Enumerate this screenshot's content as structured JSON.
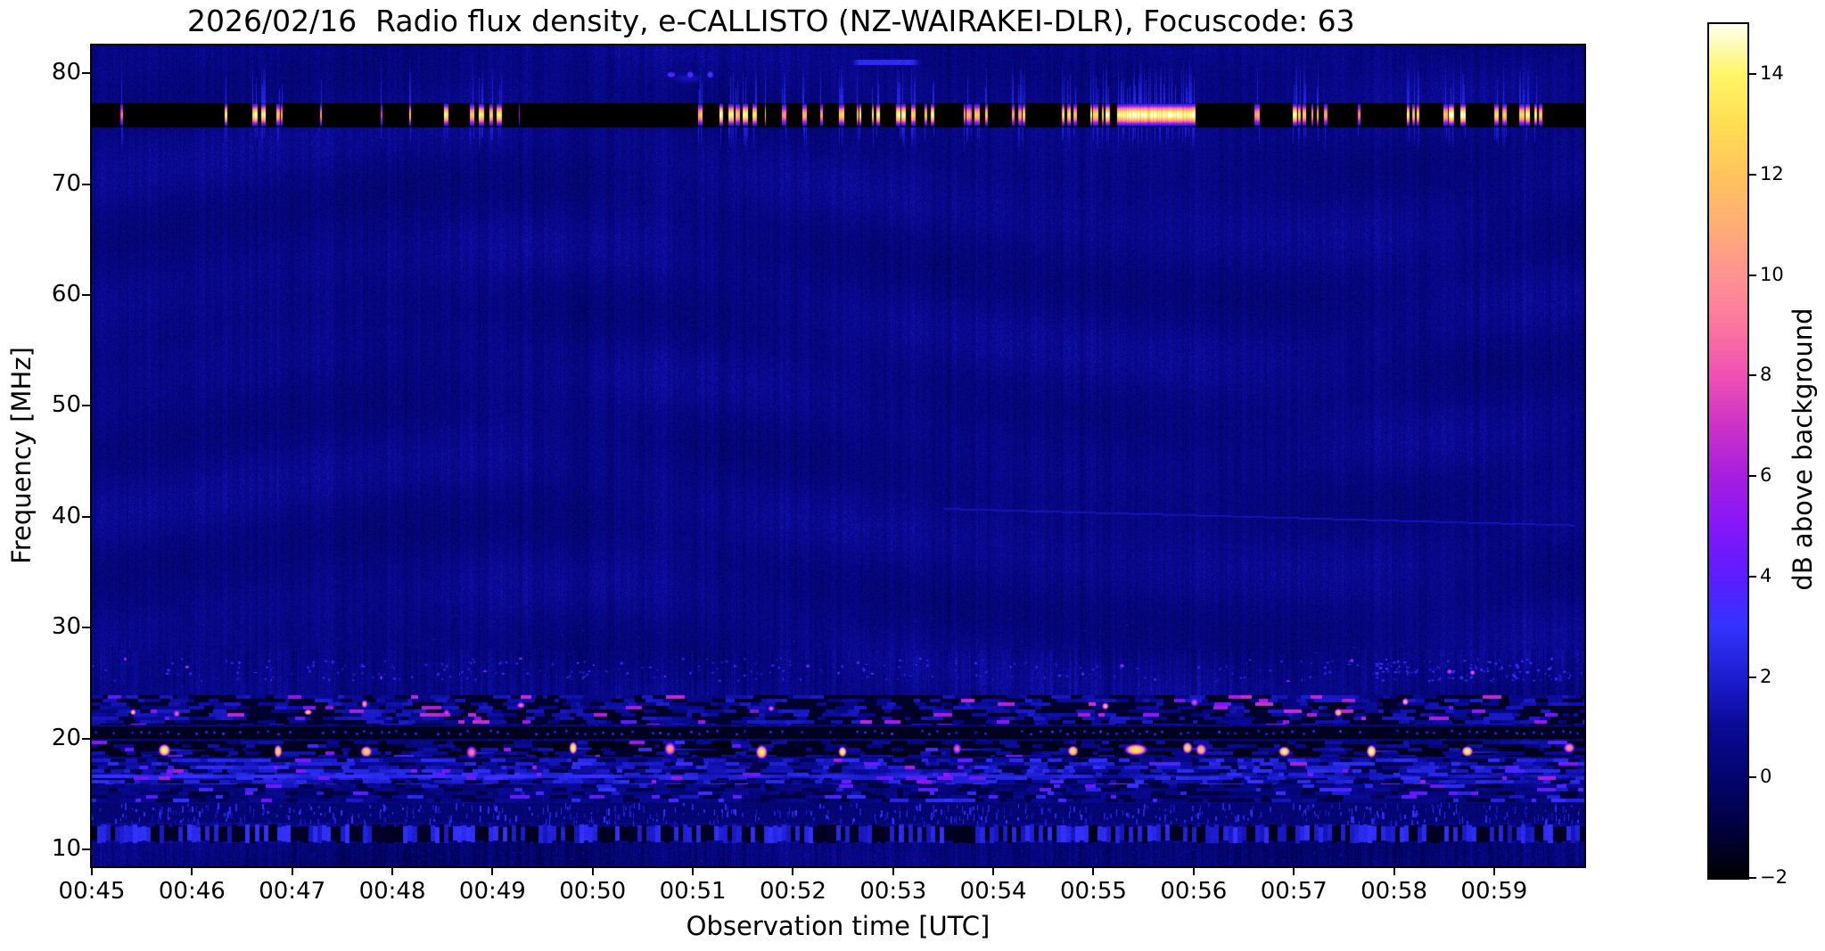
{
  "figure": {
    "title": "2026/02/16  Radio flux density, e-CALLISTO (NZ-WAIRAKEI-DLR), Focuscode: 63",
    "background": "#ffffff",
    "text_color": "#000000"
  },
  "axes": {
    "x": {
      "label": "Observation time [UTC]",
      "tick_labels": [
        "00:45",
        "00:46",
        "00:47",
        "00:48",
        "00:49",
        "00:50",
        "00:51",
        "00:52",
        "00:53",
        "00:54",
        "00:55",
        "00:56",
        "00:57",
        "00:58",
        "00:59"
      ],
      "tick_minutes_after_start": [
        0,
        1,
        2,
        3,
        4,
        5,
        6,
        7,
        8,
        9,
        10,
        11,
        12,
        13,
        14
      ]
    },
    "y": {
      "label": "Frequency [MHz]",
      "tick_labels": [
        "80",
        "70",
        "60",
        "50",
        "40",
        "30",
        "20",
        "10"
      ],
      "tick_values_mhz": [
        80,
        70,
        60,
        50,
        40,
        30,
        20,
        10
      ]
    }
  },
  "colorbar": {
    "label": "dB above background",
    "tick_labels": [
      "14",
      "12",
      "10",
      "8",
      "6",
      "4",
      "2",
      "0",
      "−2"
    ],
    "tick_values_db": [
      14,
      12,
      10,
      8,
      6,
      4,
      2,
      0,
      -2
    ],
    "range_db": [
      -2,
      15
    ]
  },
  "chart_data": {
    "type": "heatmap",
    "title": "2026/02/16  Radio flux density, e-CALLISTO (NZ-WAIRAKEI-DLR), Focuscode: 63",
    "xlabel": "Observation time [UTC]",
    "ylabel": "Frequency [MHz]",
    "value_label": "dB above background",
    "x_range_minutes_after_0045": [
      0,
      14.9
    ],
    "y_range_mhz": [
      8.5,
      82.5
    ],
    "value_range_db": [
      -2,
      15
    ],
    "background_level_db": 0.55,
    "colormap_stops": [
      [
        -2,
        "#000000"
      ],
      [
        -1,
        "#000040"
      ],
      [
        0,
        "#04046e"
      ],
      [
        1,
        "#0a0a96"
      ],
      [
        2,
        "#1d1dd2"
      ],
      [
        3,
        "#3333ff"
      ],
      [
        4,
        "#5c1cff"
      ],
      [
        5,
        "#8517fa"
      ],
      [
        6,
        "#a81ee0"
      ],
      [
        7,
        "#cc32c8"
      ],
      [
        8,
        "#f050b4"
      ],
      [
        9,
        "#fb76a0"
      ],
      [
        10,
        "#ff9292"
      ],
      [
        11,
        "#ffad76"
      ],
      [
        12,
        "#ffc45e"
      ],
      [
        13,
        "#ffdd52"
      ],
      [
        14,
        "#fff566"
      ],
      [
        15,
        "#ffffee"
      ]
    ],
    "features": {
      "rfi_band_mhz": [
        75.2,
        77.3
      ],
      "rfi_burst_core_mhz": 76.25,
      "rfi_bursts_min_density_intensity": [
        [
          0.24,
          0.62,
          0.45,
          11
        ],
        [
          1.33,
          1.92,
          0.65,
          14
        ],
        [
          2.21,
          2.3,
          0.5,
          11
        ],
        [
          2.88,
          2.95,
          0.3,
          8
        ],
        [
          3.17,
          3.33,
          0.5,
          12
        ],
        [
          3.46,
          4.13,
          0.65,
          14.5
        ],
        [
          4.17,
          4.27,
          0.35,
          9
        ],
        [
          5.9,
          6.73,
          0.8,
          15
        ],
        [
          6.86,
          7.62,
          0.55,
          13.5
        ],
        [
          7.64,
          8.52,
          0.7,
          14.5
        ],
        [
          8.62,
          9.32,
          0.6,
          13.5
        ],
        [
          9.68,
          10.22,
          0.75,
          14.5
        ],
        [
          10.24,
          11.02,
          1.0,
          15
        ],
        [
          11.56,
          11.82,
          0.45,
          12
        ],
        [
          11.91,
          12.48,
          0.6,
          14
        ],
        [
          12.58,
          12.74,
          0.3,
          10
        ],
        [
          13.13,
          13.78,
          0.65,
          14.5
        ],
        [
          14.0,
          14.55,
          0.7,
          14.5
        ]
      ],
      "upper_dots": {
        "freq_mhz": 79.9,
        "times_min": [
          5.78,
          5.97,
          6.17
        ],
        "intensity_db": 4.2
      },
      "upper_line": {
        "freq_mhz": 81.0,
        "time_range_min": [
          7.55,
          8.3
        ],
        "intensity_db": 2.7
      },
      "faint_drift_line": {
        "from": [
          8.5,
          40.8
        ],
        "to": [
          14.8,
          39.3
        ],
        "intensity_db": 1.6
      },
      "interference_bands": [
        {
          "name": "speckle-27",
          "f_mhz": [
            25.2,
            27.3
          ],
          "style": "sparse-dots"
        },
        {
          "name": "dash-blob-23",
          "f_mhz": [
            21.3,
            23.9
          ],
          "style": "dark-dashes-orange-blobs",
          "blob_period_min": 0.65
        },
        {
          "name": "dot-row-20.6",
          "f_mhz": [
            20.1,
            21.1
          ],
          "style": "periodic-dots",
          "dot_period_min": 0.085
        },
        {
          "name": "hot-blob-19",
          "f_mhz": [
            18.4,
            19.8
          ],
          "style": "black-band-bright-blobs",
          "blob_period_min": 0.95,
          "extra_blobs_min": [
            10.42,
            11.07
          ]
        },
        {
          "name": "speckle-17",
          "f_mhz": [
            15.9,
            18.2
          ],
          "style": "dense-speckle-with-line",
          "line_mhz": 16.65
        },
        {
          "name": "speckle-15",
          "f_mhz": [
            14.3,
            15.9
          ],
          "style": "dim-speckle"
        },
        {
          "name": "dash-13",
          "f_mhz": [
            12.5,
            14.2
          ],
          "style": "blue-dashes"
        },
        {
          "name": "alt-dash-11.5",
          "f_mhz": [
            10.7,
            12.3
          ],
          "style": "alternating-black-blue",
          "period_min": 0.045
        },
        {
          "name": "quiet-bottom",
          "f_mhz": [
            8.5,
            10.6
          ],
          "style": "dark"
        }
      ]
    }
  }
}
